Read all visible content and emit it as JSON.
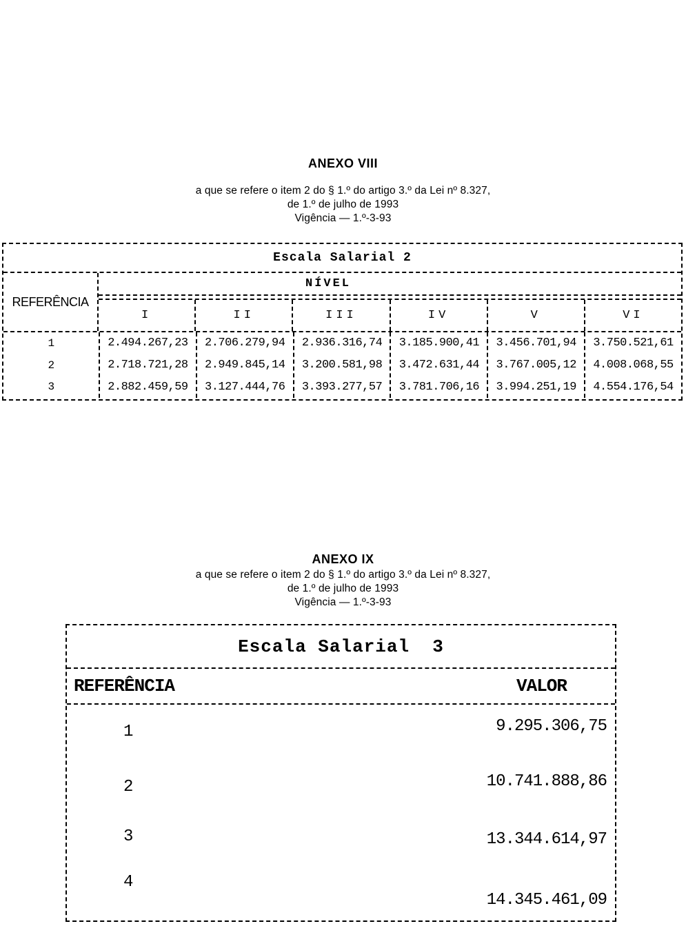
{
  "anexo8": {
    "title": "ANEXO VIII",
    "subtitle_lines": [
      "a que se refere o item 2 do § 1.º do artigo 3.º da Lei nº 8.327,",
      "de 1.º de julho de 1993",
      "Vigência — 1.º-3-93"
    ]
  },
  "table1": {
    "title": "Escala Salarial 2",
    "ref_header": "REFERÊNCIA",
    "group_header": "NÍVEL",
    "level_headers": [
      "I",
      "II",
      "III",
      "IV",
      "V",
      "VI"
    ],
    "rows": [
      {
        "ref": "1",
        "values": [
          "2.494.267,23",
          "2.706.279,94",
          "2.936.316,74",
          "3.185.900,41",
          "3.456.701,94",
          "3.750.521,61"
        ]
      },
      {
        "ref": "2",
        "values": [
          "2.718.721,28",
          "2.949.845,14",
          "3.200.581,98",
          "3.472.631,44",
          "3.767.005,12",
          "4.008.068,55"
        ]
      },
      {
        "ref": "3",
        "values": [
          "2.882.459,59",
          "3.127.444,76",
          "3.393.277,57",
          "3.781.706,16",
          "3.994.251,19",
          "4.554.176,54"
        ]
      }
    ]
  },
  "anexo9": {
    "title": "ANEXO IX",
    "subtitle_lines": [
      "a que se refere o item 2 do § 1.º do artigo 3.º da Lei nº 8.327,",
      "de 1.º de julho de 1993",
      "Vigência — 1.º-3-93"
    ]
  },
  "table2": {
    "title": "Escala Salarial  3",
    "ref_header": "REFERÊNCIA",
    "value_header": "VALOR",
    "rows": [
      {
        "ref": "1",
        "value": "9.295.306,75"
      },
      {
        "ref": "2",
        "value": "10.741.888,86"
      },
      {
        "ref": "3",
        "value": "13.344.614,97"
      },
      {
        "ref": "4",
        "value": "14.345.461,09"
      }
    ]
  }
}
